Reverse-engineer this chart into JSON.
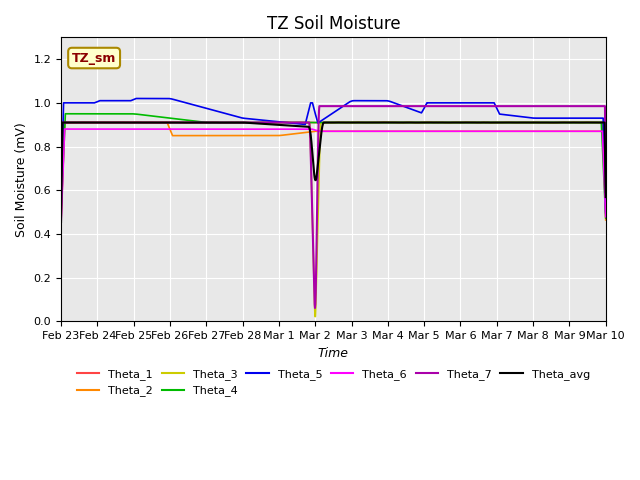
{
  "title": "TZ Soil Moisture",
  "xlabel": "Time",
  "ylabel": "Soil Moisture (mV)",
  "ylim": [
    0.0,
    1.3
  ],
  "yticks": [
    0.0,
    0.2,
    0.4,
    0.6,
    0.8,
    1.0,
    1.2
  ],
  "bg_color": "#e8e8e8",
  "fig_color": "#ffffff",
  "legend_label": "TZ_sm",
  "series_colors": {
    "Theta_1": "#ff4444",
    "Theta_2": "#ff8800",
    "Theta_3": "#cccc00",
    "Theta_4": "#00bb00",
    "Theta_5": "#0000ee",
    "Theta_6": "#ff00ff",
    "Theta_7": "#aa00aa",
    "Theta_avg": "#000000"
  }
}
